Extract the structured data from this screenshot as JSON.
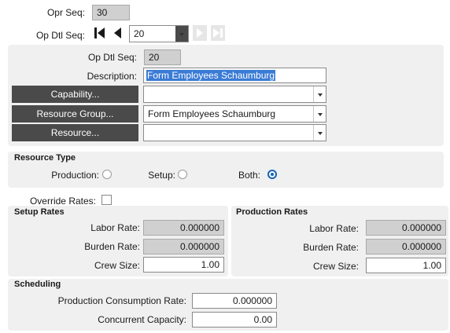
{
  "opr_seq": {
    "label": "Opr Seq:",
    "value": "30"
  },
  "op_dtl_seq_nav": {
    "label": "Op Dtl Seq:",
    "value": "20"
  },
  "detail": {
    "op_dtl_seq_label": "Op Dtl Seq:",
    "op_dtl_seq_value": "20",
    "description_label": "Description:",
    "description_value": "Form Employees Schaumburg",
    "capability_button": "Capability...",
    "capability_value": "",
    "resource_group_button": "Resource Group...",
    "resource_group_value": "Form Employees Schaumburg",
    "resource_button": "Resource...",
    "resource_value": ""
  },
  "resource_type": {
    "title": "Resource Type",
    "production_label": "Production:",
    "setup_label": "Setup:",
    "both_label": "Both:",
    "selected": "both"
  },
  "override_rates": {
    "label": "Override Rates:",
    "checked": false
  },
  "setup_rates": {
    "title": "Setup Rates",
    "labor_rate_label": "Labor Rate:",
    "labor_rate": "0.000000",
    "burden_rate_label": "Burden Rate:",
    "burden_rate": "0.000000",
    "crew_size_label": "Crew Size:",
    "crew_size": "1.00"
  },
  "production_rates": {
    "title": "Production Rates",
    "labor_rate_label": "Labor Rate:",
    "labor_rate": "0.000000",
    "burden_rate_label": "Burden Rate:",
    "burden_rate": "0.000000",
    "crew_size_label": "Crew Size:",
    "crew_size": "1.00"
  },
  "scheduling": {
    "title": "Scheduling",
    "consumption_label": "Production Consumption Rate:",
    "consumption_value": "0.000000",
    "capacity_label": "Concurrent Capacity:",
    "capacity_value": "0.00"
  },
  "colors": {
    "accent": "#1464b4",
    "dark_button": "#4a4a4a",
    "panel": "#f0f0f0",
    "readonly": "#d0d0d0"
  },
  "icons": [
    "first-record-icon",
    "previous-record-icon",
    "next-record-icon",
    "last-record-icon",
    "chevron-down-icon"
  ]
}
